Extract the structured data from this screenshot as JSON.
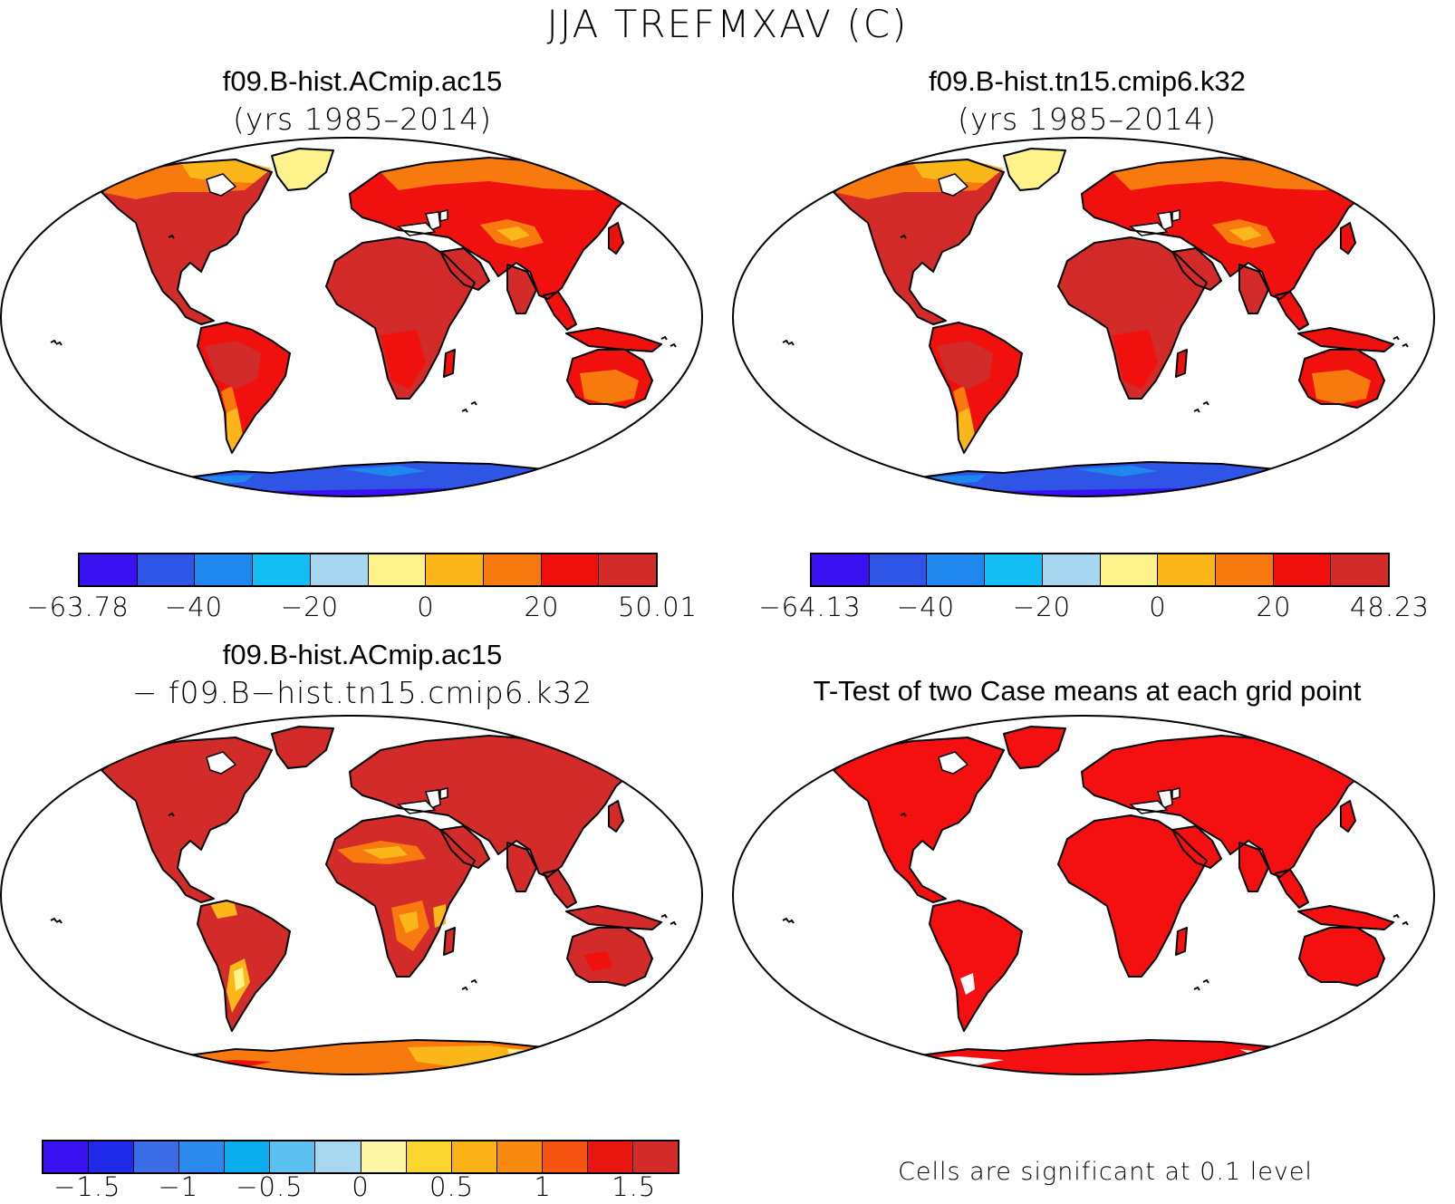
{
  "figure": {
    "main_title": "JJA TREFMXAV (C)"
  },
  "panels": [
    {
      "id": "case1",
      "title": "f09.B-hist.ACmip.ac15",
      "subtitle": "(yrs 1985–2014)",
      "colorbar": {
        "colors": [
          "#3a12f2",
          "#2f55e6",
          "#1e88ef",
          "#12bef3",
          "#a7d7f0",
          "#fdf38a",
          "#fbb71a",
          "#f87a0f",
          "#f0110f",
          "#d32a2a"
        ],
        "tick_labels": [
          "−63.78",
          "−40",
          "−20",
          "0",
          "20",
          "50.01"
        ],
        "min": -63.78,
        "max": 50.01
      }
    },
    {
      "id": "case2",
      "title": "f09.B-hist.tn15.cmip6.k32",
      "subtitle": "(yrs 1985–2014)",
      "colorbar": {
        "colors": [
          "#3a12f2",
          "#2f55e6",
          "#1e88ef",
          "#12bef3",
          "#a7d7f0",
          "#fdf38a",
          "#fbb71a",
          "#f87a0f",
          "#f0110f",
          "#d32a2a"
        ],
        "tick_labels": [
          "−64.13",
          "−40",
          "−20",
          "0",
          "20",
          "48.23"
        ],
        "min": -64.13,
        "max": 48.23
      }
    },
    {
      "id": "difference",
      "title": "f09.B-hist.ACmip.ac15",
      "subtitle": "− f09.B−hist.tn15.cmip6.k32",
      "colorbar": {
        "colors": [
          "#3a12f2",
          "#1f2be8",
          "#3a6ce6",
          "#2b8aee",
          "#0aaeef",
          "#5cc0f0",
          "#a8d8f0",
          "#fdf7a5",
          "#fbd62e",
          "#fbb217",
          "#f88a10",
          "#f75412",
          "#e8160e",
          "#d32a2a"
        ],
        "tick_labels": [
          "−1.5",
          "−1",
          "−0.5",
          "0",
          "0.5",
          "1",
          "1.5"
        ],
        "min": -1.75,
        "max": 1.75
      }
    },
    {
      "id": "ttest",
      "title": "T-Test of two Case means at each grid point",
      "note": "Cells are significant at 0.1 level",
      "significant_color": "#f41010"
    }
  ],
  "map_colors": {
    "warm_dark": "#d32a2a",
    "warm": "#f0110f",
    "orange": "#f87a0f",
    "amber": "#fbb71a",
    "yellow": "#fdf38a",
    "pale_blue": "#a7d7f0",
    "cold": "#3a12f2",
    "cold2": "#2f55e6",
    "cold3": "#1e88ef",
    "sig": "#f41010"
  }
}
